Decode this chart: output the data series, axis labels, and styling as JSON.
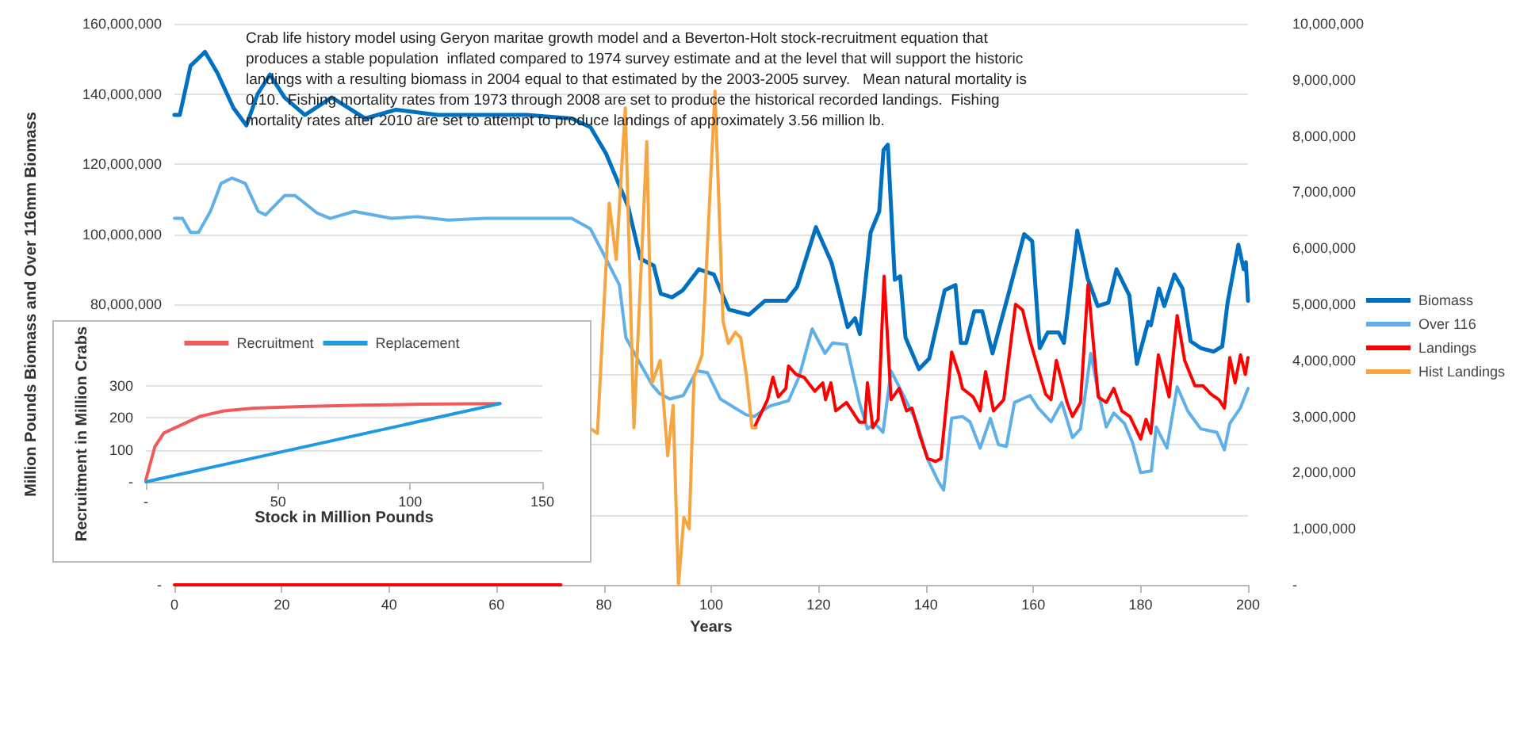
{
  "chart_data": [
    {
      "type": "line",
      "xlabel": "Years",
      "ylabel": "Million Pounds Biomass and Over 116mm Biomass",
      "annotations": [
        "Crab life history model using Geryon maritae growth model and a Beverton-Holt stock-recruitment equation that produces a stable population  inflated compared to 1974 survey estimate and at the level that will support the historic landings with a resulting biomass in 2004 equal to that estimated by the 2003-2005 survey.   Mean natural mortality is 0.10.  Fishing mortality rates from 1973 through 2008 are set to produce the historical recorded landings.  Fishing mortality rates after 2010 are set to attempt to produce landings of approximately 3.56 million lb."
      ],
      "xlim": [
        0,
        200
      ],
      "xticks": [
        0,
        20,
        40,
        60,
        80,
        100,
        120,
        140,
        160,
        180,
        200
      ],
      "ylim": [
        0,
        160000000
      ],
      "yticks": [
        {
          "value": 0,
          "label": "-"
        },
        {
          "value": 20000000,
          "label": null
        },
        {
          "value": 40000000,
          "label": null
        },
        {
          "value": 60000000,
          "label": null
        },
        {
          "value": 80000000,
          "label": "80,000,000"
        },
        {
          "value": 100000000,
          "label": "100,000,000"
        },
        {
          "value": 120000000,
          "label": "120,000,000"
        },
        {
          "value": 140000000,
          "label": "140,000,000"
        },
        {
          "value": 160000000,
          "label": "160,000,000"
        }
      ],
      "y2lim": [
        0,
        10000000
      ],
      "y2ticks": [
        {
          "value": 0,
          "label": "-"
        },
        {
          "value": 1000000,
          "label": "1,000,000"
        },
        {
          "value": 2000000,
          "label": "2,000,000"
        },
        {
          "value": 3000000,
          "label": "3,000,000"
        },
        {
          "value": 4000000,
          "label": "4,000,000"
        },
        {
          "value": 5000000,
          "label": "5,000,000"
        },
        {
          "value": 6000000,
          "label": "6,000,000"
        },
        {
          "value": 7000000,
          "label": "7,000,000"
        },
        {
          "value": 8000000,
          "label": "8,000,000"
        },
        {
          "value": 9000000,
          "label": "9,000,000"
        },
        {
          "value": 10000000,
          "label": "10,000,000"
        }
      ],
      "grid": "y",
      "legend": "right",
      "marker": "none",
      "line_style": "solid",
      "series": [
        {
          "name": "Biomass",
          "color": "#0070c0",
          "x": [
            0,
            1,
            3,
            5.7,
            8,
            11,
            13.4,
            15.5,
            17.8,
            20.5,
            24.3,
            29.3,
            35.5,
            41.3,
            49,
            65.6,
            74,
            77.5,
            80.4,
            84.5,
            86.8,
            89.3,
            90.6,
            92.7,
            94.7,
            97.7,
            100.5,
            103.3,
            107,
            110,
            114,
            116,
            119.5,
            122.4,
            125.4,
            126.8,
            127.7,
            129.7,
            131.3,
            132.1,
            132.9,
            134.2,
            135.2,
            136.2,
            138.7,
            140.6,
            143.5,
            145.5,
            146.5,
            147.5,
            149,
            150.5,
            152.4,
            155.3,
            158.3,
            159.8,
            161.2,
            162.7,
            164.7,
            165.7,
            168.2,
            170.1,
            172,
            174,
            175.5,
            177.9,
            179.3,
            181.4,
            181.9,
            183.4,
            184.4,
            186.3,
            187.8,
            189.3,
            191.2,
            193.6,
            195.2,
            196.2,
            198.2,
            199.2,
            199.6,
            200
          ],
          "values": [
            134000000.0,
            134000000.0,
            148000000.0,
            152000000.0,
            146000000.0,
            136000000.0,
            131000000.0,
            140000000.0,
            145500000.0,
            139000000.0,
            134000000.0,
            139000000.0,
            133000000.0,
            135500000.0,
            134000000.0,
            134000000.0,
            133000000.0,
            130500000.0,
            123000000.0,
            108000000.0,
            93000000.0,
            91000000.0,
            83000000.0,
            82000000.0,
            84000000.0,
            90000000.0,
            88500000.0,
            78500000.0,
            77000000.0,
            81000000.0,
            81000000.0,
            85000000.0,
            102000000.0,
            92000000.0,
            73500000.0,
            76000000.0,
            71500000.0,
            100500000.0,
            106500000.0,
            124000000.0,
            125500000.0,
            87000000.0,
            88000000.0,
            70500000.0,
            61500000.0,
            64500000.0,
            84000000.0,
            85500000.0,
            69000000.0,
            69000000.0,
            78000000.0,
            78000000.0,
            66000000.0,
            82500000.0,
            100000000.0,
            98000000.0,
            67500000.0,
            72000000.0,
            72000000.0,
            69000000.0,
            101000000.0,
            87500000.0,
            79500000.0,
            80500000.0,
            90000000.0,
            82500000.0,
            63000000.0,
            75000000.0,
            74000000.0,
            84500000.0,
            79500000.0,
            88500000.0,
            84500000.0,
            69500000.0,
            67500000.0,
            66500000.0,
            68000000.0,
            80500000.0,
            97000000.0,
            90000000.0,
            92000000.0,
            81000000.0
          ]
        },
        {
          "name": "Over 116",
          "color": "#5fb0e8",
          "x": [
            0,
            1.5,
            3,
            4.5,
            6.7,
            8.7,
            10.7,
            13.2,
            15.6,
            17,
            20.5,
            22.5,
            26.6,
            29,
            33.5,
            40.4,
            45.2,
            51,
            57.9,
            74,
            77.5,
            80.4,
            82.9,
            84.1,
            86.6,
            89,
            90.4,
            92.3,
            94.8,
            97.3,
            99.3,
            101.7,
            106.5,
            108,
            110.9,
            114.4,
            116.4,
            118.8,
            121.2,
            122.6,
            125.2,
            127.6,
            129.1,
            130.5,
            132,
            133.5,
            135.5,
            138.4,
            140.4,
            142.3,
            143.3,
            144.8,
            146.8,
            148.2,
            150.1,
            152,
            153.5,
            155,
            156.5,
            159.4,
            160.9,
            163.3,
            165.3,
            167.3,
            168.8,
            170.7,
            172.1,
            173.6,
            175,
            177,
            178.5,
            180,
            182,
            182.9,
            184.9,
            186.8,
            188.8,
            191.2,
            194.2,
            195.6,
            196.6,
            198.6,
            200
          ],
          "values": [
            104500000.0,
            104500000.0,
            100500000.0,
            100500000.0,
            106500000.0,
            114500000.0,
            116000000.0,
            114500000.0,
            106500000.0,
            105500000.0,
            111000000.0,
            111000000.0,
            106000000.0,
            104500000.0,
            106500000.0,
            104500000.0,
            105000000.0,
            104000000.0,
            104500000.0,
            104500000.0,
            101500000.0,
            93000000.0,
            85500000.0,
            70500000.0,
            63500000.0,
            57000000.0,
            54500000.0,
            53000000.0,
            54000000.0,
            61000000.0,
            60500000.0,
            53000000.0,
            48500000.0,
            48000000.0,
            51000000.0,
            52500000.0,
            59500000.0,
            73000000.0,
            66000000.0,
            69000000.0,
            68500000.0,
            52000000.0,
            44500000.0,
            46000000.0,
            43500000.0,
            61000000.0,
            55000000.0,
            46000000.0,
            35500000.0,
            29500000.0,
            27000000.0,
            47500000.0,
            48000000.0,
            46500000.0,
            39000000.0,
            47500000.0,
            40000000.0,
            39500000.0,
            52000000.0,
            54000000.0,
            50500000.0,
            46500000.0,
            52000000.0,
            42000000.0,
            44500000.0,
            66000000.0,
            55000000.0,
            45000000.0,
            49000000.0,
            46000000.0,
            40500000.0,
            32000000.0,
            32500000.0,
            45000000.0,
            39000000.0,
            56500000.0,
            49500000.0,
            44500000.0,
            43500000.0,
            38500000.0,
            46000000.0,
            50500000.0,
            56000000.0
          ]
        },
        {
          "name": "Landings",
          "color": "#ff0000",
          "axis": "y2",
          "x": [
            0,
            72,
            90,
            108,
            110.5,
            111.5,
            112.5,
            113.9,
            114.4,
            115.8,
            117.3,
            119.3,
            120.8,
            121.3,
            122.3,
            123.2,
            125.2,
            127.6,
            128.6,
            129.1,
            130.1,
            131.1,
            132.2,
            133.5,
            135,
            136.4,
            137.4,
            138.9,
            140.3,
            141.8,
            142.8,
            144.8,
            146.2,
            146.8,
            148.8,
            150.1,
            151.1,
            152.6,
            154.5,
            156.7,
            158,
            159.4,
            162.3,
            163.3,
            164.3,
            166.3,
            167.3,
            168.8,
            170.2,
            172.1,
            173.6,
            175,
            176.5,
            178,
            180,
            181,
            181.9,
            183.3,
            185.3,
            186.8,
            188.2,
            190.1,
            191.6,
            193.1,
            194.6,
            195.6,
            196.6,
            197.6,
            198.6,
            199.5,
            200
          ],
          "values": [
            0,
            0,
            null,
            2800000.0,
            3300000.0,
            3700000.0,
            3350000.0,
            3500000.0,
            3900000.0,
            3750000.0,
            3700000.0,
            3450000.0,
            3600000.0,
            3300000.0,
            3600000.0,
            3100000.0,
            3250000.0,
            2900000.0,
            2900000.0,
            3600000.0,
            2800000.0,
            2950000.0,
            5500000.0,
            3300000.0,
            3500000.0,
            3100000.0,
            3150000.0,
            2650000.0,
            2250000.0,
            2200000.0,
            2250000.0,
            4150000.0,
            3750000.0,
            3500000.0,
            3350000.0,
            3100000.0,
            3800000.0,
            3100000.0,
            3300000.0,
            5000000.0,
            4900000.0,
            4350000.0,
            3400000.0,
            3300000.0,
            4000000.0,
            3250000.0,
            3000000.0,
            3250000.0,
            5350000.0,
            3350000.0,
            3250000.0,
            3500000.0,
            3100000.0,
            3000000.0,
            2600000.0,
            2950000.0,
            2700000.0,
            4100000.0,
            3350000.0,
            4800000.0,
            4000000.0,
            3550000.0,
            3550000.0,
            3400000.0,
            3300000.0,
            3150000.0,
            4050000.0,
            3600000.0,
            4100000.0,
            3750000.0,
            4050000.0
          ]
        },
        {
          "name": "Hist Landings",
          "color": "#f7a540",
          "axis": "y2",
          "x": [
            77.3,
            78.8,
            81,
            82.3,
            84,
            85.6,
            88,
            89,
            90.5,
            91.9,
            92.9,
            93.9,
            94.9,
            95.9,
            96.8,
            98.3,
            100.7,
            102.2,
            103.2,
            104.5,
            105.5,
            106.6,
            107.6,
            108.4
          ],
          "values": [
            2800000.0,
            2700000.0,
            6800000.0,
            5800000.0,
            8500000.0,
            2800000.0,
            7900000.0,
            3600000.0,
            4000000.0,
            2300000.0,
            3200000.0,
            0,
            1200000.0,
            1000000.0,
            3700000.0,
            4100000.0,
            8800000.0,
            4700000.0,
            4300000.0,
            4500000.0,
            4400000.0,
            3700000.0,
            2800000.0,
            2800000.0
          ]
        }
      ]
    },
    {
      "type": "line",
      "xlabel": "Stock in Million Pounds",
      "ylabel": "Recruitment in Million Crabs",
      "xlim": [
        0,
        150
      ],
      "xticks": [
        {
          "value": 0,
          "label": "-"
        },
        50,
        100,
        150
      ],
      "ylim": [
        0,
        300
      ],
      "yticks": [
        {
          "value": 0,
          "label": "-"
        },
        100,
        200,
        300
      ],
      "grid": "y",
      "legend": "top",
      "marker": "none",
      "line_style": "solid",
      "series": [
        {
          "name": "Recruitment",
          "color": "#f05a5a",
          "x": [
            0,
            3.4,
            6.8,
            13.6,
            20.5,
            29.5,
            41,
            59,
            82,
            104.5,
            134
          ],
          "values": [
            7,
            110,
            153,
            179,
            205,
            222,
            231,
            236,
            240,
            243,
            245
          ]
        },
        {
          "name": "Replacement",
          "color": "#1f9ae0",
          "x": [
            0,
            134
          ],
          "values": [
            0,
            245
          ]
        }
      ]
    }
  ]
}
